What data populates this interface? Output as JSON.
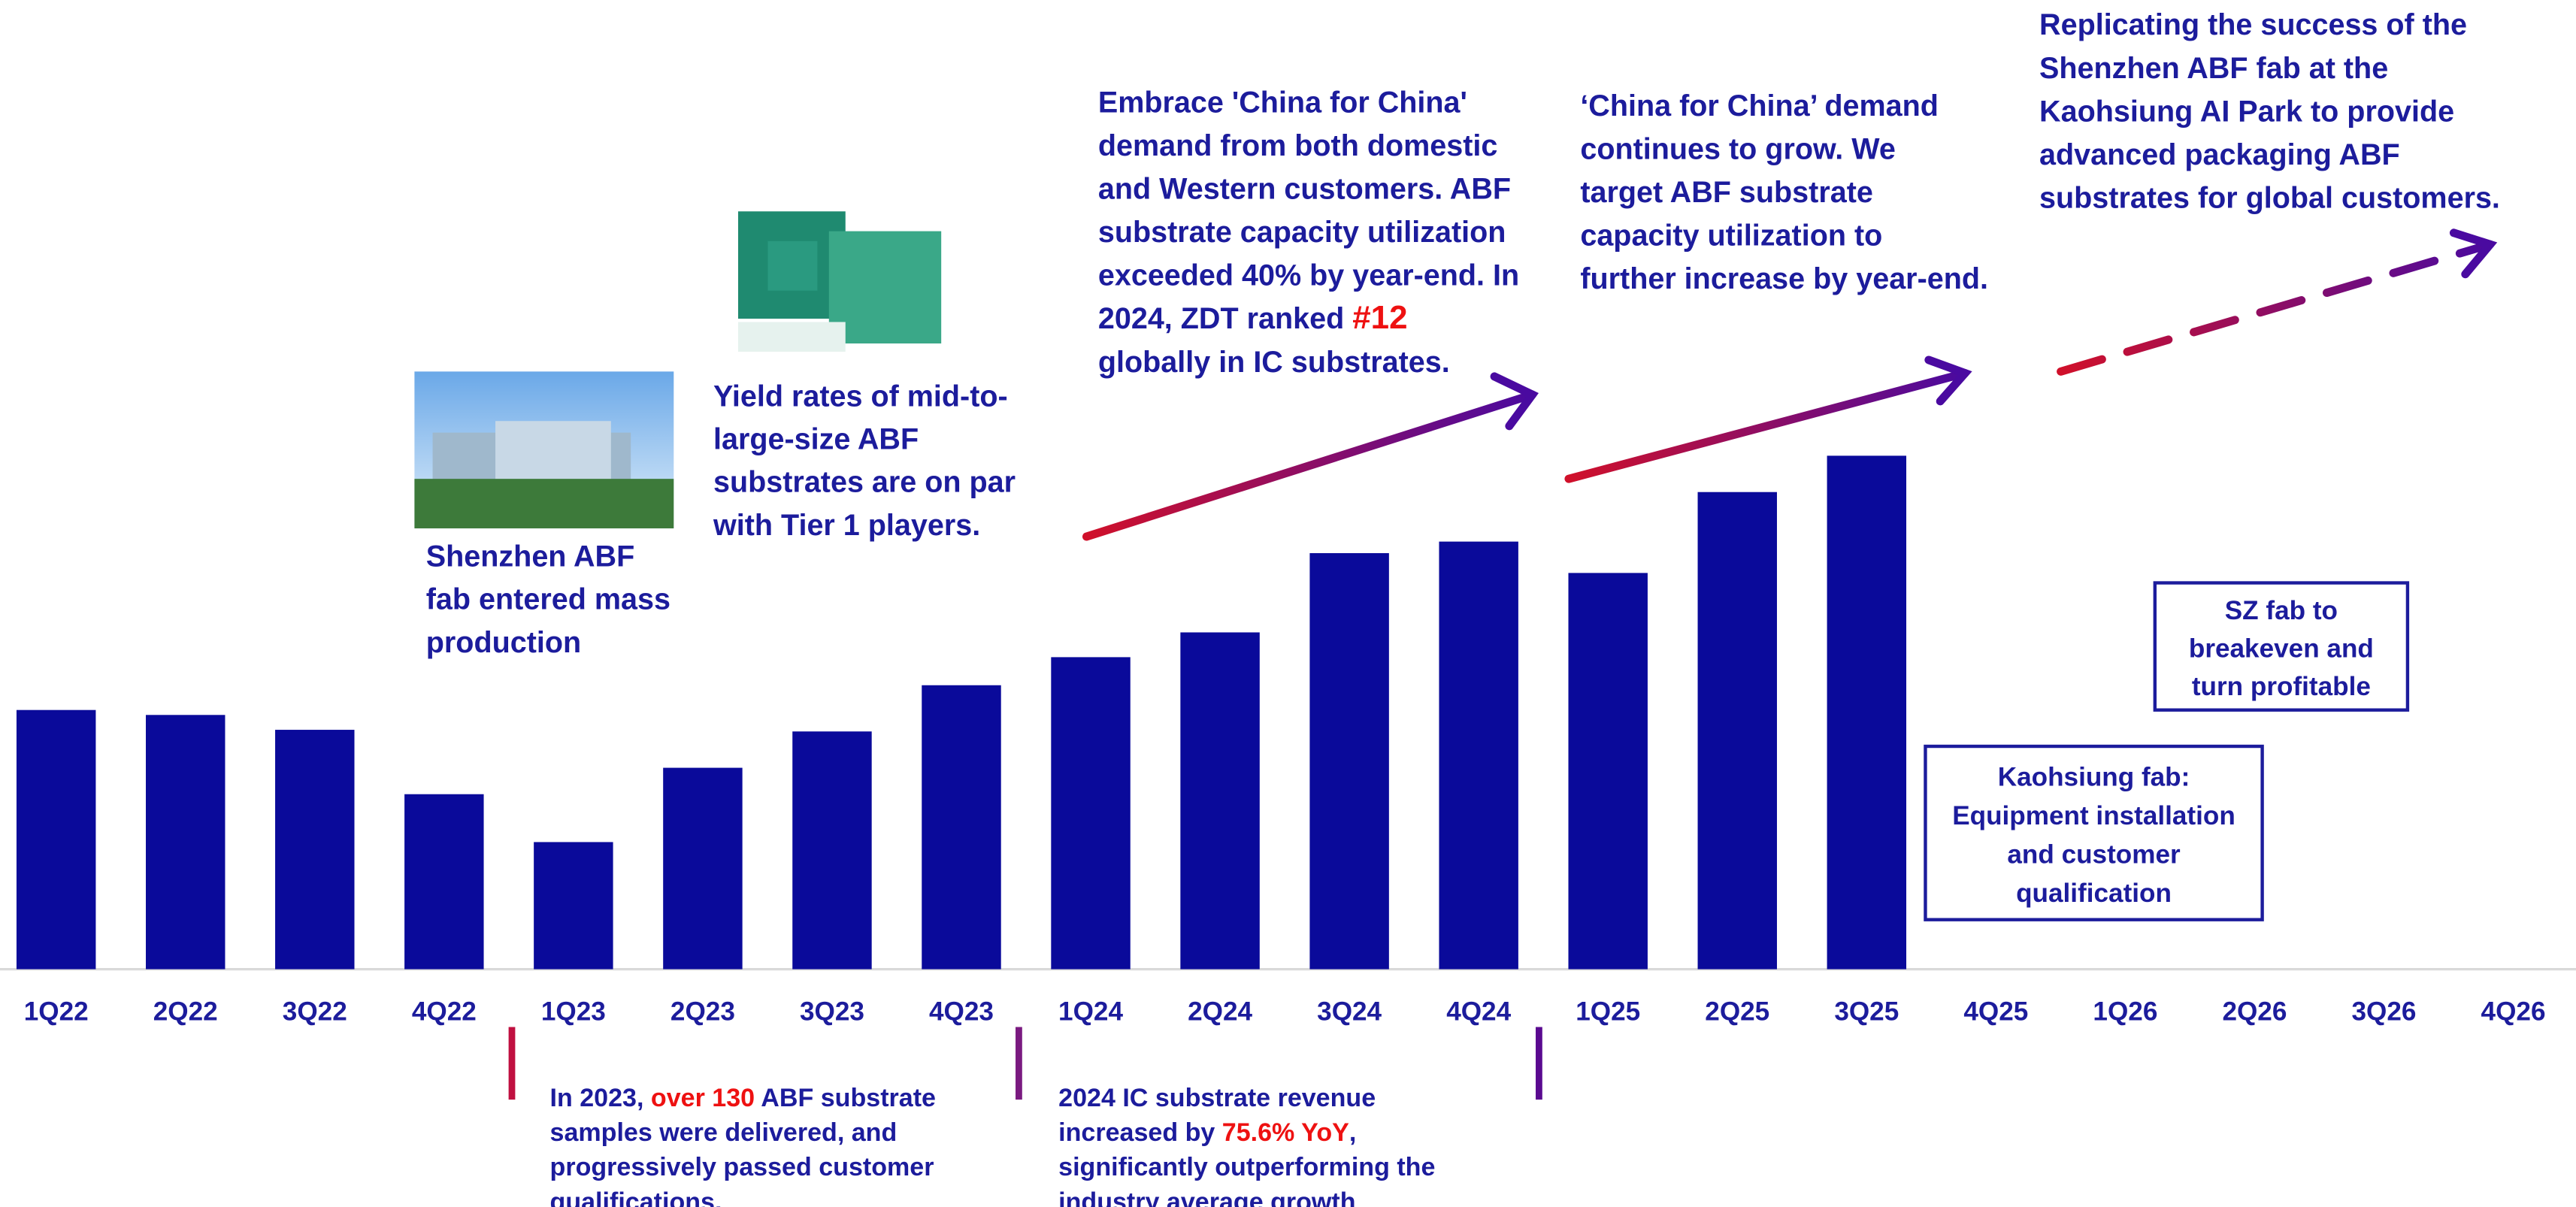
{
  "chart_data": {
    "type": "bar",
    "categories": [
      "1Q22",
      "2Q22",
      "3Q22",
      "4Q22",
      "1Q23",
      "2Q23",
      "3Q23",
      "4Q23",
      "1Q24",
      "2Q24",
      "3Q24",
      "4Q24",
      "1Q25",
      "2Q25",
      "3Q25",
      "4Q25",
      "1Q26",
      "2Q26",
      "3Q26",
      "4Q26"
    ],
    "values": [
      157,
      154,
      145,
      106,
      77,
      122,
      144,
      172,
      189,
      204,
      252,
      259,
      240,
      289,
      311,
      null,
      null,
      null,
      null,
      null
    ],
    "color": "#0a0a9a",
    "ylim": [
      0,
      320
    ],
    "annotations": [
      {
        "lines": [
          [
            "Shenzhen ABF"
          ],
          [
            "fab entered mass"
          ],
          [
            "production"
          ]
        ]
      },
      {
        "lines": [
          [
            "Yield rates of mid-to-"
          ],
          [
            "large-size ABF"
          ],
          [
            "substrates are on par"
          ],
          [
            "with Tier 1 players."
          ]
        ]
      },
      {
        "lines": [
          [
            "Embrace 'China for China'"
          ],
          [
            "demand from both domestic"
          ],
          [
            "and Western customers. ABF"
          ],
          [
            "substrate capacity utilization"
          ],
          [
            "exceeded 40% by year-end. In"
          ],
          [
            "2024, ZDT ranked ",
            {
              "text": "#12",
              "color": "#ee1111"
            }
          ],
          [
            "globally in IC substrates."
          ]
        ]
      },
      {
        "lines": [
          [
            "‘China for China’ demand"
          ],
          [
            "continues to grow. We"
          ],
          [
            "target ABF substrate"
          ],
          [
            "capacity utilization to"
          ],
          [
            "further increase by year-end."
          ]
        ]
      },
      {
        "lines": [
          [
            "Replicating the success of the"
          ],
          [
            "Shenzhen ABF fab at the"
          ],
          [
            "Kaohsiung AI Park to provide"
          ],
          [
            "advanced packaging ABF"
          ],
          [
            "substrates for global customers."
          ]
        ]
      },
      {
        "lines": [
          [
            "In 2023, ",
            {
              "text": "over 130",
              "color": "#ee1111"
            },
            " ABF substrate"
          ],
          [
            "samples were delivered, and"
          ],
          [
            "progressively passed customer"
          ],
          [
            "qualifications."
          ]
        ]
      },
      {
        "lines": [
          [
            "2024 IC substrate revenue"
          ],
          [
            "increased by ",
            {
              "text": "75.6% YoY",
              "color": "#ee1111"
            },
            ","
          ],
          [
            "significantly outperforming the"
          ],
          [
            "industry average growth"
          ]
        ]
      }
    ],
    "boxes": [
      {
        "lines": [
          "SZ fab to",
          "breakeven and",
          "turn profitable"
        ]
      },
      {
        "lines": [
          "Kaohsiung fab:",
          "Equipment installation",
          "and customer",
          "qualification"
        ]
      }
    ]
  }
}
